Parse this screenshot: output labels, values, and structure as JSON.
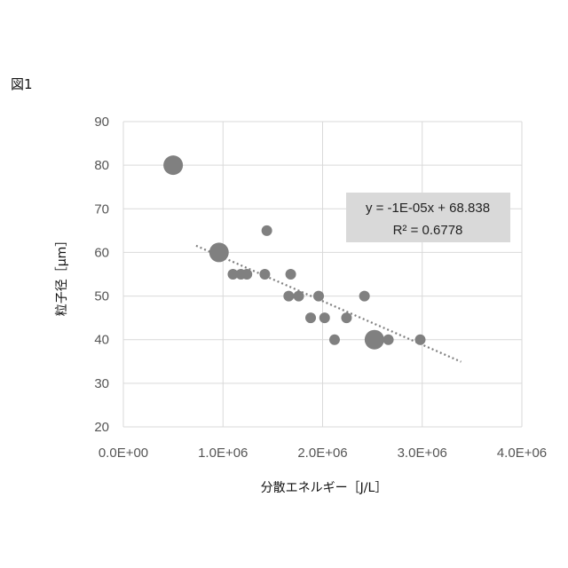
{
  "figure_label": "図1",
  "chart_data": {
    "type": "scatter",
    "xlabel": "分散エネルギー［J/L］",
    "ylabel": "粒子径［μm］",
    "xlim": [
      0,
      4000000
    ],
    "ylim": [
      20,
      90
    ],
    "x_ticks": [
      0,
      1000000,
      2000000,
      3000000,
      4000000
    ],
    "x_tick_labels": [
      "0.0E+00",
      "1.0E+06",
      "2.0E+06",
      "3.0E+06",
      "4.0E+06"
    ],
    "y_ticks": [
      20,
      30,
      40,
      50,
      60,
      70,
      80,
      90
    ],
    "y_tick_labels": [
      "20",
      "30",
      "40",
      "50",
      "60",
      "70",
      "80",
      "90"
    ],
    "grid": true,
    "series": [
      {
        "marker_color": "#808080",
        "points": [
          {
            "x": 500000,
            "y": 80,
            "size": "large"
          },
          {
            "x": 960000,
            "y": 60,
            "size": "large"
          },
          {
            "x": 1100000,
            "y": 55,
            "size": "small"
          },
          {
            "x": 1180000,
            "y": 55,
            "size": "small"
          },
          {
            "x": 1240000,
            "y": 55,
            "size": "small"
          },
          {
            "x": 1440000,
            "y": 65,
            "size": "small"
          },
          {
            "x": 1420000,
            "y": 55,
            "size": "small"
          },
          {
            "x": 1680000,
            "y": 55,
            "size": "small"
          },
          {
            "x": 1660000,
            "y": 50,
            "size": "small"
          },
          {
            "x": 1760000,
            "y": 50,
            "size": "small"
          },
          {
            "x": 1960000,
            "y": 50,
            "size": "small"
          },
          {
            "x": 1880000,
            "y": 45,
            "size": "small"
          },
          {
            "x": 2020000,
            "y": 45,
            "size": "small"
          },
          {
            "x": 2240000,
            "y": 45,
            "size": "small"
          },
          {
            "x": 2120000,
            "y": 40,
            "size": "small"
          },
          {
            "x": 2420000,
            "y": 50,
            "size": "small"
          },
          {
            "x": 2520000,
            "y": 40,
            "size": "large"
          },
          {
            "x": 2660000,
            "y": 40,
            "size": "small"
          },
          {
            "x": 2980000,
            "y": 40,
            "size": "small"
          }
        ]
      }
    ],
    "trendline": {
      "type": "linear",
      "color": "#7f7f7f",
      "style": "dotted",
      "slope": -1e-05,
      "intercept": 68.838,
      "x_range": [
        730000,
        3390000
      ],
      "equation_label": "y = -1E-05x + 68.838",
      "r2_label": "R² = 0.6778",
      "label_background": "#d9d9d9"
    },
    "colors": {
      "gridline": "#d9d9d9",
      "tick_text": "#595959"
    }
  }
}
